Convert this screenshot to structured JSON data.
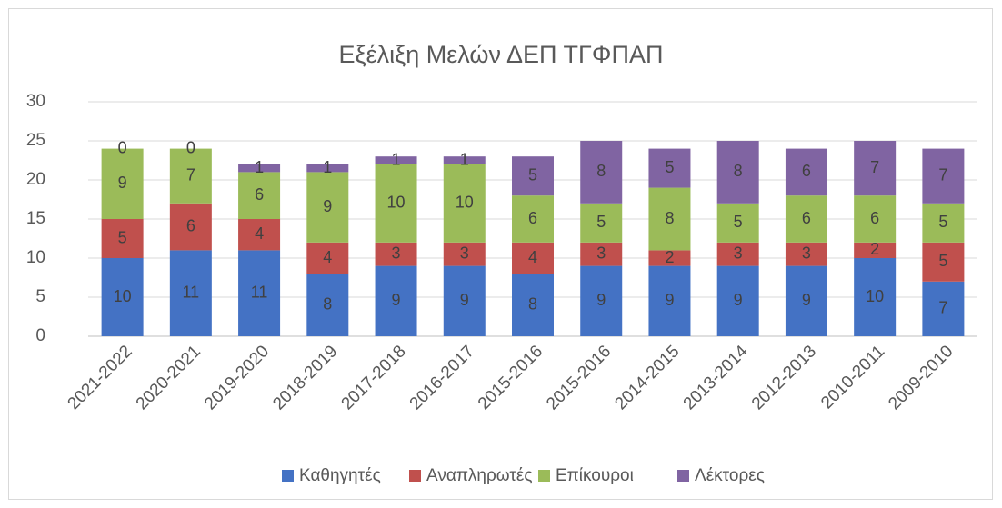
{
  "chart_data": {
    "type": "stacked_bar",
    "title": "Εξέλιξη Μελών ΔΕΠ ΤΓΦΠΑΠ",
    "categories": [
      "2021-2022",
      "2020-2021",
      "2019-2020",
      "2018-2019",
      "2017-2018",
      "2016-2017",
      "2015-2016",
      "2015-2016",
      "2014-2015",
      "2013-2014",
      "2012-2013",
      "2010-2011",
      "2009-2010"
    ],
    "series": [
      {
        "name": "Καθηγητές",
        "color": "#4472c4",
        "values": [
          10,
          11,
          11,
          8,
          9,
          9,
          8,
          9,
          9,
          9,
          9,
          10,
          7
        ]
      },
      {
        "name": "Αναπληρωτές",
        "color": "#c0504d",
        "values": [
          5,
          6,
          4,
          4,
          3,
          3,
          4,
          3,
          2,
          3,
          3,
          2,
          5
        ]
      },
      {
        "name": "Επίκουροι",
        "color": "#9bbb59",
        "values": [
          9,
          7,
          6,
          9,
          10,
          10,
          6,
          5,
          8,
          5,
          6,
          6,
          5
        ]
      },
      {
        "name": "Λέκτορες",
        "color": "#8064a2",
        "values": [
          0,
          0,
          1,
          1,
          1,
          1,
          5,
          8,
          5,
          8,
          6,
          7,
          7
        ]
      }
    ],
    "ylim": [
      0,
      30
    ],
    "yticks": [
      0,
      5,
      10,
      15,
      20,
      25,
      30
    ],
    "grid": true,
    "legend": "bottom"
  }
}
